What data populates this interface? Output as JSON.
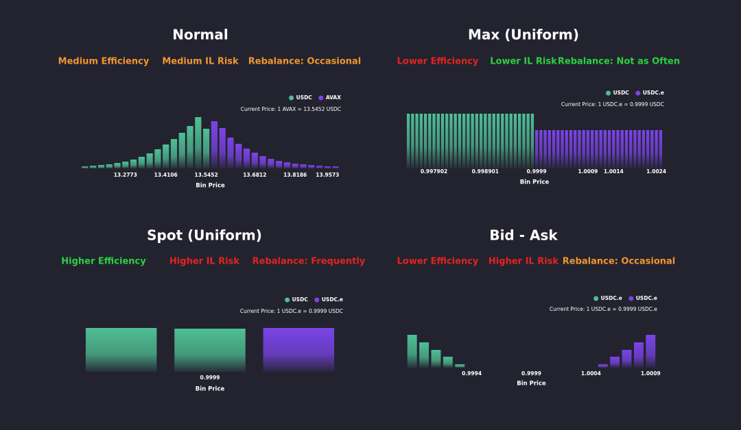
{
  "chart_data": [
    {
      "type": "bar",
      "title": "Normal",
      "tags": [
        {
          "text": "Medium Efficiency",
          "color": "#f0962e"
        },
        {
          "text": "Medium IL Risk",
          "color": "#f0962e"
        },
        {
          "text": "Rebalance: Occasional",
          "color": "#f0962e"
        }
      ],
      "annotation": "Current Price: 1 AVAX = 13.5452 USDC",
      "x_label": "Bin Price",
      "categories": [
        null,
        null,
        null,
        null,
        null,
        "13.2773",
        null,
        null,
        null,
        null,
        "13.4106",
        null,
        null,
        null,
        null,
        "13.5452",
        null,
        null,
        null,
        null,
        null,
        "13.6812",
        null,
        null,
        null,
        null,
        "13.8186",
        null,
        null,
        null,
        "13.9573",
        null
      ],
      "series": [
        {
          "name": "USDC",
          "color": "#4fbf95",
          "values": [
            3,
            4,
            5,
            6,
            8,
            10,
            13,
            17,
            22,
            28,
            35,
            43,
            52,
            62,
            75,
            58,
            null,
            null,
            null,
            null,
            null,
            null,
            null,
            null,
            null,
            null,
            null,
            null,
            null,
            null,
            null,
            null
          ]
        },
        {
          "name": "AVAX",
          "color": "#7b44e8",
          "values": [
            null,
            null,
            null,
            null,
            null,
            null,
            null,
            null,
            null,
            null,
            null,
            null,
            null,
            null,
            null,
            null,
            69,
            59,
            45,
            36,
            29,
            23,
            18,
            14,
            11,
            9,
            7,
            6,
            5,
            4,
            3,
            3
          ]
        }
      ]
    },
    {
      "type": "bar",
      "title": "Max (Uniform)",
      "tags": [
        {
          "text": "Lower Efficiency",
          "color": "#e5231f"
        },
        {
          "text": "Lower IL Risk",
          "color": "#2bd13f"
        },
        {
          "text": "Rebalance: Not as Often",
          "color": "#2bd13f"
        }
      ],
      "annotation": "Current Price: 1 USDC.e = 0.9999 USDC",
      "x_label": "Bin Price",
      "categories": [
        null,
        null,
        null,
        null,
        null,
        null,
        "0.997902",
        null,
        null,
        null,
        null,
        null,
        null,
        null,
        null,
        null,
        null,
        null,
        "0.998901",
        null,
        null,
        null,
        null,
        null,
        null,
        null,
        null,
        null,
        null,
        null,
        "0.9999",
        null,
        null,
        null,
        null,
        null,
        null,
        null,
        null,
        null,
        null,
        null,
        "1.0009",
        null,
        null,
        null,
        null,
        null,
        "1.0014",
        null,
        null,
        null,
        null,
        null,
        null,
        null,
        null,
        null,
        "1.0024",
        null
      ],
      "series": [
        {
          "name": "USDC",
          "color": "#4fbf95",
          "values": [
            80,
            80,
            80,
            80,
            80,
            80,
            80,
            80,
            80,
            80,
            80,
            80,
            80,
            80,
            80,
            80,
            80,
            80,
            80,
            80,
            80,
            80,
            80,
            80,
            80,
            80,
            80,
            80,
            80,
            80,
            null,
            null,
            null,
            null,
            null,
            null,
            null,
            null,
            null,
            null,
            null,
            null,
            null,
            null,
            null,
            null,
            null,
            null,
            null,
            null,
            null,
            null,
            null,
            null,
            null,
            null,
            null,
            null,
            null,
            null
          ]
        },
        {
          "name": "USDC.e",
          "color": "#7b44e8",
          "values": [
            null,
            null,
            null,
            null,
            null,
            null,
            null,
            null,
            null,
            null,
            null,
            null,
            null,
            null,
            null,
            null,
            null,
            null,
            null,
            null,
            null,
            null,
            null,
            null,
            null,
            null,
            null,
            null,
            null,
            null,
            56,
            56,
            56,
            56,
            56,
            56,
            56,
            56,
            56,
            56,
            56,
            56,
            56,
            56,
            56,
            56,
            56,
            56,
            56,
            56,
            56,
            56,
            56,
            56,
            56,
            56,
            56,
            56,
            56,
            56
          ]
        }
      ]
    },
    {
      "type": "bar",
      "title": "Spot (Uniform)",
      "tags": [
        {
          "text": "Higher Efficiency",
          "color": "#2bd13f"
        },
        {
          "text": "Higher IL Risk",
          "color": "#e5231f"
        },
        {
          "text": "Rebalance: Frequently",
          "color": "#e5231f"
        }
      ],
      "annotation": "Current Price: 1 USDC.e = 0.9999 USDC",
      "x_label": "Bin Price",
      "categories": [
        null,
        "0.9999",
        null
      ],
      "series": [
        {
          "name": "USDC",
          "color": "#4fbf95",
          "values": [
            64,
            63,
            null
          ]
        },
        {
          "name": "USDC.e",
          "color": "#7b44e8",
          "values": [
            null,
            null,
            64
          ]
        }
      ]
    },
    {
      "type": "bar",
      "title": "Bid - Ask",
      "tags": [
        {
          "text": "Lower Efficiency",
          "color": "#e5231f"
        },
        {
          "text": "Higher IL Risk",
          "color": "#e5231f"
        },
        {
          "text": "Rebalance: Occasional",
          "color": "#f0962e"
        }
      ],
      "annotation": "Current Price: 1 USDC.e = 0.9999 USDC.e",
      "x_label": "Bin Price",
      "categories": [
        null,
        null,
        null,
        null,
        null,
        "0.9994",
        null,
        null,
        null,
        null,
        "0.9999",
        null,
        null,
        null,
        null,
        "1.0004",
        null,
        null,
        null,
        null,
        "1.0009"
      ],
      "series": [
        {
          "name": "USDC.e",
          "color": "#4fbf95",
          "values": [
            48,
            37,
            26,
            16,
            5,
            null,
            null,
            null,
            null,
            null,
            null,
            null,
            null,
            null,
            null,
            null,
            null,
            null,
            null,
            null,
            null
          ]
        },
        {
          "name": "USDC.e",
          "color": "#7b44e8",
          "values": [
            null,
            null,
            null,
            null,
            null,
            null,
            null,
            null,
            null,
            null,
            null,
            null,
            null,
            null,
            null,
            null,
            5,
            16,
            26,
            37,
            48
          ]
        }
      ]
    }
  ]
}
